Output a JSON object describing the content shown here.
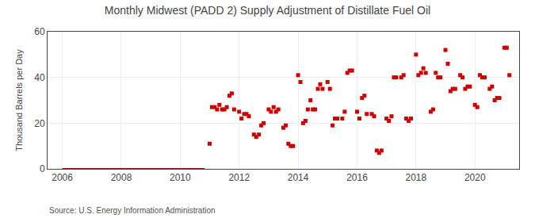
{
  "chart_data": {
    "type": "scatter",
    "title": "Monthly Midwest (PADD 2) Supply Adjustment of Distillate Fuel Oil",
    "ylabel": "Thousand Barrels per Day",
    "annotations": [
      "Source: U.S. Energy Information Administration"
    ],
    "xlim": [
      2005.5,
      2021.5
    ],
    "ylim": [
      0,
      60
    ],
    "xticks": [
      2006,
      2008,
      2010,
      2012,
      2014,
      2016,
      2018,
      2020
    ],
    "yticks": [
      0,
      20,
      40,
      60
    ],
    "grid": true,
    "series": [
      {
        "type": "line",
        "color": "#8b1a1a",
        "line_style": "solid",
        "x": [
          2006.0,
          2010.83
        ],
        "values": [
          0,
          0
        ]
      },
      {
        "type": "scatter",
        "color": "#cc0000",
        "marker": "square",
        "x": [
          2011.0,
          2011.08,
          2011.17,
          2011.25,
          2011.33,
          2011.42,
          2011.5,
          2011.58,
          2011.67,
          2011.75,
          2011.83,
          2012.0,
          2012.08,
          2012.17,
          2012.25,
          2012.33,
          2012.5,
          2012.58,
          2012.67,
          2012.75,
          2012.83,
          2013.0,
          2013.08,
          2013.17,
          2013.25,
          2013.33,
          2013.5,
          2013.58,
          2013.67,
          2013.75,
          2013.83,
          2014.0,
          2014.08,
          2014.17,
          2014.25,
          2014.33,
          2014.42,
          2014.5,
          2014.58,
          2014.67,
          2014.75,
          2014.83,
          2015.0,
          2015.08,
          2015.17,
          2015.25,
          2015.33,
          2015.5,
          2015.58,
          2015.67,
          2015.75,
          2015.83,
          2016.0,
          2016.08,
          2016.17,
          2016.25,
          2016.33,
          2016.5,
          2016.58,
          2016.67,
          2016.75,
          2016.83,
          2017.0,
          2017.08,
          2017.17,
          2017.25,
          2017.33,
          2017.5,
          2017.58,
          2017.67,
          2017.75,
          2017.83,
          2018.0,
          2018.08,
          2018.17,
          2018.25,
          2018.33,
          2018.5,
          2018.58,
          2018.67,
          2018.75,
          2018.83,
          2019.0,
          2019.08,
          2019.17,
          2019.25,
          2019.33,
          2019.5,
          2019.58,
          2019.67,
          2019.75,
          2019.83,
          2020.0,
          2020.08,
          2020.17,
          2020.25,
          2020.33,
          2020.5,
          2020.58,
          2020.67,
          2020.75,
          2020.83,
          2021.0,
          2021.08,
          2021.17
        ],
        "values": [
          11,
          27,
          27,
          26,
          28,
          26,
          26,
          27,
          32,
          33,
          26,
          25,
          22,
          24,
          24,
          23,
          15,
          14,
          15,
          19,
          20,
          26,
          25,
          27,
          25,
          26,
          18,
          19,
          11,
          10,
          10,
          41,
          38,
          20,
          21,
          26,
          30,
          26,
          26,
          35,
          37,
          35,
          38,
          35,
          19,
          22,
          22,
          22,
          25,
          42,
          43,
          43,
          25,
          22,
          31,
          32,
          24,
          24,
          23,
          8,
          7,
          8,
          22,
          21,
          23,
          40,
          40,
          40,
          41,
          22,
          21,
          22,
          50,
          41,
          42,
          44,
          42,
          25,
          26,
          42,
          40,
          40,
          52,
          46,
          34,
          35,
          35,
          41,
          40,
          35,
          36,
          36,
          28,
          27,
          41,
          40,
          40,
          35,
          36,
          30,
          31,
          31,
          53,
          53,
          41
        ]
      }
    ]
  }
}
